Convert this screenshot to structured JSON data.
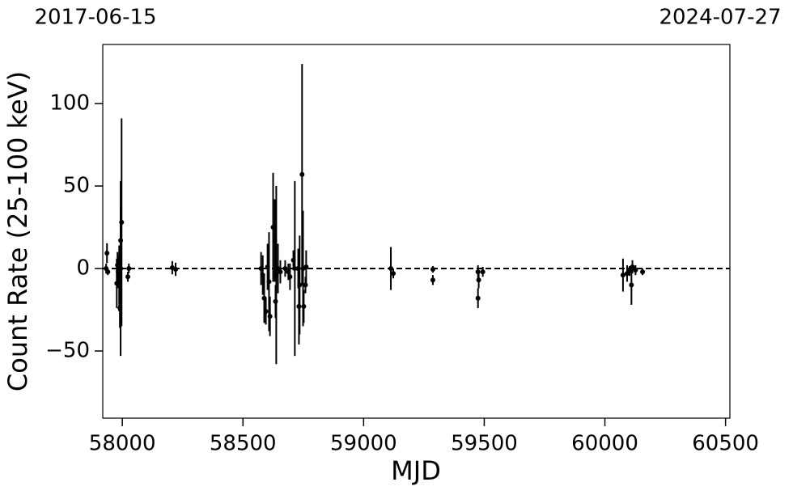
{
  "chart_data": {
    "type": "errorbar",
    "date_labels": [
      "2017-06-15",
      "2024-07-27"
    ],
    "xlabel": "MJD",
    "ylabel": "Count Rate (25-100 keV)",
    "xlim": [
      57919,
      60518
    ],
    "ylim": [
      -90.7,
      135.8
    ],
    "xticks": [
      58000,
      58500,
      59000,
      59500,
      60000,
      60500
    ],
    "yticks": [
      {
        "value": -50,
        "label": "−50"
      },
      0,
      50,
      100
    ],
    "hline": 0,
    "color": "#000000",
    "x": [
      57936.5,
      57933,
      57940,
      57983,
      57987,
      57993,
      57997,
      57993,
      57990,
      57977,
      57980,
      58027,
      58023,
      58207,
      58221,
      58575,
      58582,
      58588,
      58595,
      58602,
      58608,
      58612,
      58625,
      58632,
      58635,
      58638,
      58645,
      58655,
      58675,
      58688,
      58695,
      58709,
      58715,
      58729,
      58732,
      58735,
      58745,
      58749,
      58752,
      58759,
      58762,
      59113,
      59123,
      59287,
      59287,
      59474,
      59477,
      59474,
      59494,
      60075,
      60092,
      60102,
      60110,
      60114,
      60127,
      60156
    ],
    "values": [
      9.3,
      0,
      -2,
      -2,
      -6,
      0,
      28,
      17,
      -24,
      -9,
      2,
      0,
      -5,
      0.5,
      -0.5,
      0,
      -4,
      -18,
      -26,
      1,
      -8,
      -29,
      25,
      17,
      -20,
      -4,
      0,
      -2,
      0,
      -2,
      -5,
      5,
      0,
      0,
      -23,
      -10,
      57,
      0,
      -23,
      -10,
      1,
      0,
      -3,
      -0.5,
      -7,
      -2,
      -7,
      -18,
      -2,
      -4,
      -3,
      -1.5,
      -10,
      1,
      -1,
      -2
    ],
    "errors": [
      6,
      3,
      2,
      10,
      20,
      53,
      63,
      20,
      12,
      15,
      8,
      3,
      3,
      4,
      4,
      10,
      12,
      15,
      8,
      14,
      30,
      12,
      33,
      25,
      10,
      54,
      15,
      7,
      5,
      5,
      8,
      6,
      53,
      12,
      23,
      30,
      67,
      35,
      10,
      5,
      10,
      13,
      3,
      2,
      3,
      4,
      5,
      6,
      3,
      10,
      5,
      3,
      12,
      4,
      3,
      2
    ]
  }
}
